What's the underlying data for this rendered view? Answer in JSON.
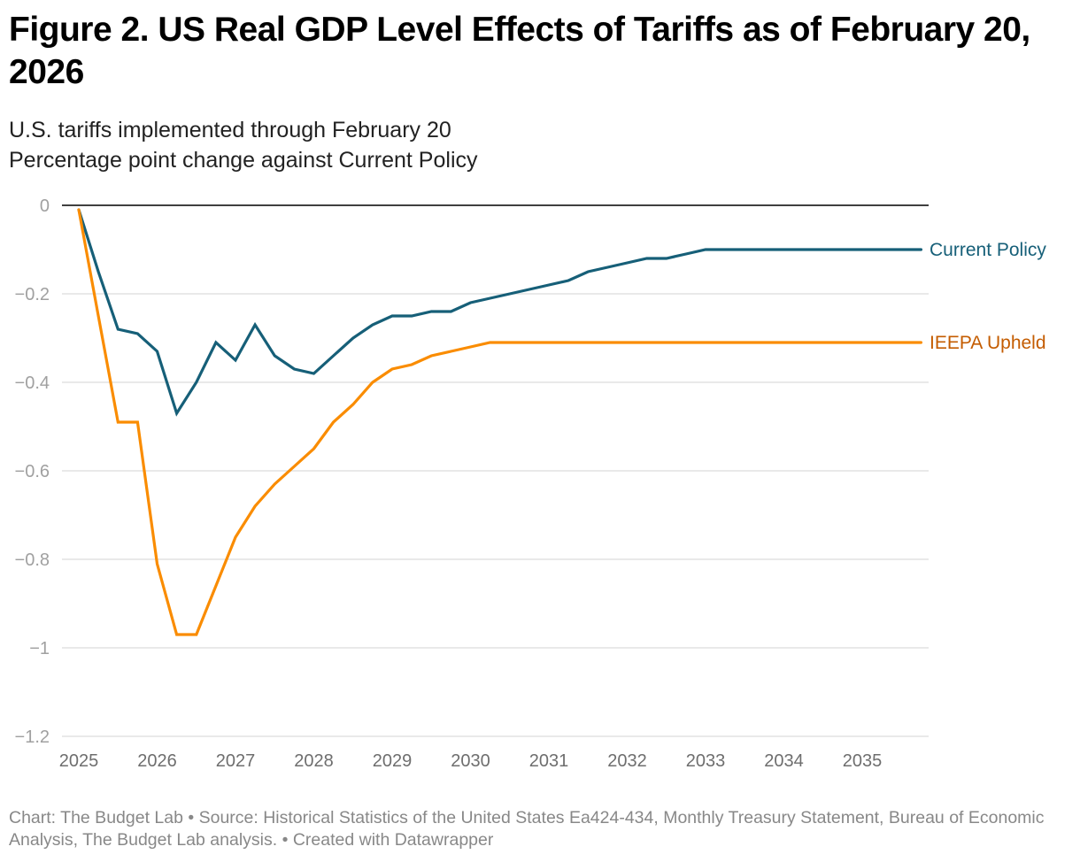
{
  "title": "Figure 2. US Real GDP Level Effects of Tariffs as of February 20, 2026",
  "subtitle_lines": [
    "U.S. tariffs implemented through February 20",
    "Percentage point change against Current Policy"
  ],
  "footer": "Chart: The Budget Lab • Source: Historical Statistics of the United States Ea424-434, Monthly Treasury Statement, Bureau of Economic Analysis, The Budget Lab analysis.  • Created with Datawrapper",
  "chart_data": {
    "type": "line",
    "title": "Figure 2. US Real GDP Level Effects of Tariffs as of February 20, 2026",
    "xlabel": "",
    "ylabel": "Percentage point change against Current Policy",
    "xlim": [
      2025,
      2035.75
    ],
    "ylim": [
      -1.2,
      0
    ],
    "grid": true,
    "legend": "direct-labels-right",
    "x_ticks": [
      2025,
      2026,
      2027,
      2028,
      2029,
      2030,
      2031,
      2032,
      2033,
      2034,
      2035
    ],
    "y_ticks": [
      0,
      -0.2,
      -0.4,
      -0.6,
      -0.8,
      -1,
      -1.2
    ],
    "y_tick_labels": [
      "0",
      "−0.2",
      "−0.4",
      "−0.6",
      "−0.8",
      "−1",
      "−1.2"
    ],
    "x_start": 2025,
    "x_step": 0.25,
    "series": [
      {
        "name": "Current Policy",
        "color": "#165f78",
        "label_color": "#165f78",
        "values": [
          -0.01,
          -0.15,
          -0.28,
          -0.29,
          -0.33,
          -0.47,
          -0.4,
          -0.31,
          -0.35,
          -0.27,
          -0.34,
          -0.37,
          -0.38,
          -0.34,
          -0.3,
          -0.27,
          -0.25,
          -0.25,
          -0.24,
          -0.24,
          -0.22,
          -0.21,
          -0.2,
          -0.19,
          -0.18,
          -0.17,
          -0.15,
          -0.14,
          -0.13,
          -0.12,
          -0.12,
          -0.11,
          -0.1,
          -0.1,
          -0.1,
          -0.1,
          -0.1,
          -0.1,
          -0.1,
          -0.1,
          -0.1,
          -0.1,
          -0.1,
          -0.1
        ]
      },
      {
        "name": "IEEPA Upheld",
        "color": "#fa8c00",
        "label_color": "#c45c00",
        "values": [
          -0.01,
          -0.25,
          -0.49,
          -0.49,
          -0.81,
          -0.97,
          -0.97,
          -0.86,
          -0.75,
          -0.68,
          -0.63,
          -0.59,
          -0.55,
          -0.49,
          -0.45,
          -0.4,
          -0.37,
          -0.36,
          -0.34,
          -0.33,
          -0.32,
          -0.31,
          -0.31,
          -0.31,
          -0.31,
          -0.31,
          -0.31,
          -0.31,
          -0.31,
          -0.31,
          -0.31,
          -0.31,
          -0.31,
          -0.31,
          -0.31,
          -0.31,
          -0.31,
          -0.31,
          -0.31,
          -0.31,
          -0.31,
          -0.31,
          -0.31,
          -0.31
        ]
      }
    ]
  }
}
